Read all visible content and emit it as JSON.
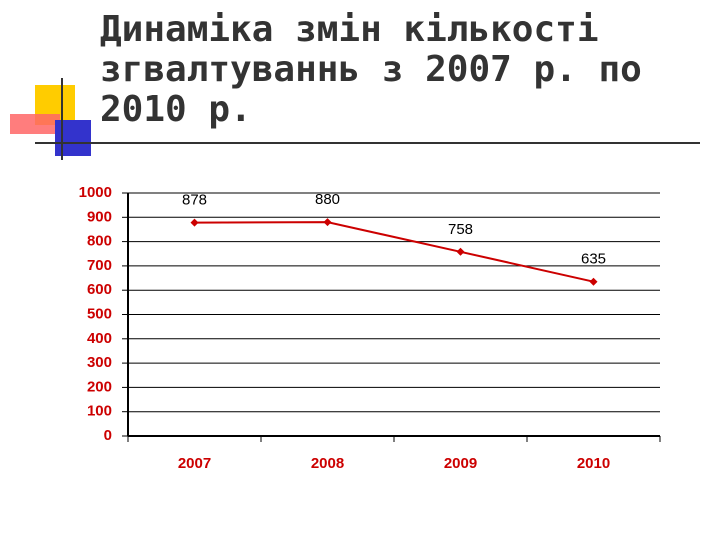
{
  "chart_data": {
    "type": "line",
    "title": "Динаміка змін кількості згвалтуваннь з 2007 р. по 2010 р.",
    "categories": [
      "2007",
      "2008",
      "2009",
      "2010"
    ],
    "values": [
      878,
      880,
      758,
      635
    ],
    "color": "#cc0000",
    "ylim": [
      0,
      1000
    ],
    "yticks": [
      0,
      100,
      200,
      300,
      400,
      500,
      600,
      700,
      800,
      900,
      1000
    ],
    "grid": true
  }
}
